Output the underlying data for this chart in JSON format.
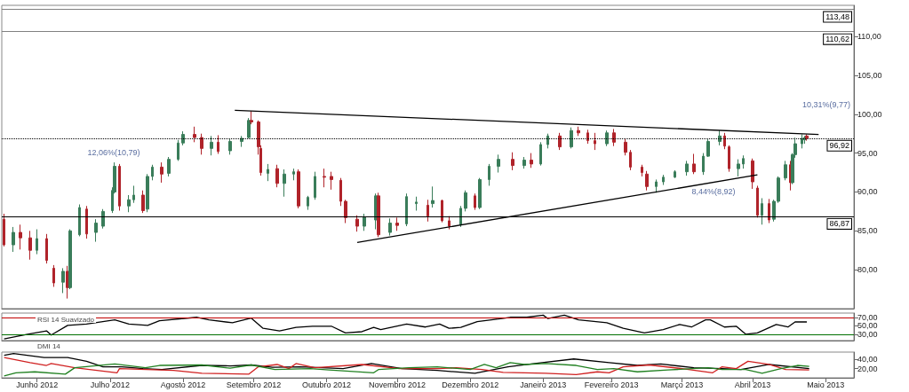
{
  "chart_data": [
    {
      "type": "candlestick",
      "xlim": [
        "2012-05-31",
        "2013-05-28"
      ],
      "ylim": [
        75,
        114
      ],
      "tick_labels": "y",
      "yticks": [
        {
          "value": 80,
          "label": "80,00"
        },
        {
          "value": 85,
          "label": "85,00"
        },
        {
          "value": 90,
          "label": "90,00"
        },
        {
          "value": 95,
          "label": "95,00"
        },
        {
          "value": 100,
          "label": "100,00"
        },
        {
          "value": 105,
          "label": "105,00"
        },
        {
          "value": 110,
          "label": "110,00"
        }
      ],
      "x": [
        "2012-06-01",
        "2012-06-05",
        "2012-06-08",
        "2012-06-12",
        "2012-06-15",
        "2012-06-19",
        "2012-06-22",
        "2012-06-26",
        "2012-06-28",
        "2012-06-29",
        "2012-07-03",
        "2012-07-06",
        "2012-07-10",
        "2012-07-13",
        "2012-07-17",
        "2012-07-18",
        "2012-07-20",
        "2012-07-24",
        "2012-07-26",
        "2012-07-30",
        "2012-08-01",
        "2012-08-03",
        "2012-08-07",
        "2012-08-10",
        "2012-08-14",
        "2012-08-16",
        "2012-08-21",
        "2012-08-24",
        "2012-08-28",
        "2012-08-31",
        "2012-09-05",
        "2012-09-10",
        "2012-09-13",
        "2012-09-14",
        "2012-09-17",
        "2012-09-18",
        "2012-09-21",
        "2012-09-25",
        "2012-09-28",
        "2012-10-02",
        "2012-10-04",
        "2012-10-08",
        "2012-10-11",
        "2012-10-15",
        "2012-10-18",
        "2012-10-22",
        "2012-10-24",
        "2012-10-29",
        "2012-11-01",
        "2012-11-06",
        "2012-11-07",
        "2012-11-12",
        "2012-11-15",
        "2012-11-19",
        "2012-11-23",
        "2012-11-28",
        "2012-11-30",
        "2012-12-04",
        "2012-12-07",
        "2012-12-12",
        "2012-12-14",
        "2012-12-18",
        "2012-12-20",
        "2012-12-24",
        "2012-12-28",
        "2013-01-03",
        "2013-01-08",
        "2013-01-11",
        "2013-01-15",
        "2013-01-18",
        "2013-01-23",
        "2013-01-28",
        "2013-01-31",
        "2013-02-04",
        "2013-02-07",
        "2013-02-12",
        "2013-02-15",
        "2013-02-20",
        "2013-02-22",
        "2013-02-27",
        "2013-03-01",
        "2013-03-05",
        "2013-03-08",
        "2013-03-13",
        "2013-03-18",
        "2013-03-21",
        "2013-03-25",
        "2013-03-27",
        "2013-04-01",
        "2013-04-03",
        "2013-04-05",
        "2013-04-09",
        "2013-04-11",
        "2013-04-15",
        "2013-04-17",
        "2013-04-19",
        "2013-04-22",
        "2013-04-24",
        "2013-04-26",
        "2013-04-29",
        "2013-05-01",
        "2013-05-02",
        "2013-05-03",
        "2013-05-06",
        "2013-05-07",
        "2013-05-08"
      ],
      "ohlc": [
        [
          86.5,
          87.2,
          83.0,
          83.2
        ],
        [
          83.2,
          85.5,
          82.3,
          84.8
        ],
        [
          84.8,
          85.8,
          82.6,
          84.1
        ],
        [
          84.1,
          85.0,
          81.3,
          82.5
        ],
        [
          82.5,
          85.2,
          82.0,
          84.0
        ],
        [
          84.0,
          84.6,
          80.8,
          81.2
        ],
        [
          80.2,
          80.6,
          77.8,
          78.3
        ],
        [
          78.4,
          80.2,
          77.0,
          79.8
        ],
        [
          79.8,
          80.5,
          76.3,
          77.7
        ],
        [
          77.7,
          85.2,
          77.5,
          85.0
        ],
        [
          84.5,
          88.4,
          84.3,
          88.0
        ],
        [
          87.8,
          88.2,
          84.0,
          84.6
        ],
        [
          84.8,
          86.5,
          83.6,
          86.0
        ],
        [
          85.6,
          87.8,
          85.3,
          87.5
        ],
        [
          87.6,
          90.6,
          87.3,
          90.2
        ],
        [
          90.0,
          93.8,
          89.8,
          93.3
        ],
        [
          93.3,
          93.6,
          87.6,
          88.2
        ],
        [
          88.2,
          89.6,
          87.4,
          89.0
        ],
        [
          89.0,
          90.8,
          88.6,
          89.6
        ],
        [
          89.6,
          90.2,
          87.3,
          87.6
        ],
        [
          87.8,
          92.3,
          87.4,
          92.0
        ],
        [
          92.0,
          93.5,
          91.5,
          93.2
        ],
        [
          93.2,
          93.8,
          91.2,
          92.3
        ],
        [
          92.4,
          94.5,
          92.0,
          94.2
        ],
        [
          94.2,
          96.7,
          94.0,
          96.3
        ],
        [
          96.3,
          97.8,
          96.0,
          97.4
        ],
        [
          97.4,
          98.4,
          96.4,
          97.0
        ],
        [
          97.0,
          97.5,
          94.8,
          95.6
        ],
        [
          95.6,
          97.2,
          94.7,
          96.4
        ],
        [
          96.4,
          97.3,
          94.9,
          95.2
        ],
        [
          95.3,
          96.8,
          94.8,
          96.5
        ],
        [
          96.5,
          97.2,
          95.8,
          96.9
        ],
        [
          97.0,
          99.5,
          96.9,
          99.2
        ],
        [
          99.2,
          100.4,
          98.7,
          99.0
        ],
        [
          99.0,
          99.2,
          94.8,
          95.8
        ],
        [
          95.6,
          96.0,
          92.1,
          92.5
        ],
        [
          92.4,
          93.6,
          91.4,
          92.9
        ],
        [
          93.0,
          93.5,
          90.6,
          91.1
        ],
        [
          91.1,
          92.9,
          89.4,
          92.3
        ],
        [
          92.3,
          93.0,
          91.5,
          92.6
        ],
        [
          92.6,
          92.9,
          87.9,
          88.2
        ],
        [
          88.2,
          89.5,
          87.7,
          89.3
        ],
        [
          89.3,
          92.6,
          89.0,
          92.0
        ],
        [
          92.0,
          93.0,
          90.6,
          91.9
        ],
        [
          92.0,
          92.6,
          90.3,
          91.6
        ],
        [
          91.5,
          91.8,
          88.2,
          88.8
        ],
        [
          88.8,
          89.0,
          86.0,
          86.7
        ],
        [
          86.5,
          87.0,
          84.9,
          85.6
        ],
        [
          85.6,
          87.2,
          85.0,
          86.8
        ],
        [
          86.4,
          89.8,
          85.2,
          89.5
        ],
        [
          89.5,
          89.9,
          84.2,
          84.5
        ],
        [
          84.8,
          86.6,
          84.4,
          86.0
        ],
        [
          86.0,
          86.7,
          85.0,
          85.7
        ],
        [
          85.9,
          89.8,
          85.6,
          89.4
        ],
        [
          88.5,
          89.4,
          87.6,
          88.7
        ],
        [
          88.3,
          89.0,
          86.2,
          86.9
        ],
        [
          88.5,
          90.7,
          88.0,
          88.9
        ],
        [
          88.9,
          89.0,
          86.1,
          86.3
        ],
        [
          86.3,
          86.9,
          85.2,
          85.6
        ],
        [
          85.8,
          88.2,
          85.5,
          87.9
        ],
        [
          87.9,
          90.2,
          87.5,
          89.9
        ],
        [
          89.5,
          89.8,
          87.7,
          88.0
        ],
        [
          88.0,
          91.8,
          87.8,
          91.6
        ],
        [
          91.6,
          93.6,
          90.8,
          93.3
        ],
        [
          93.3,
          94.8,
          92.5,
          94.2
        ],
        [
          94.2,
          95.1,
          92.8,
          93.4
        ],
        [
          93.4,
          94.5,
          93.0,
          94.1
        ],
        [
          94.1,
          95.0,
          93.1,
          93.6
        ],
        [
          93.6,
          96.4,
          93.4,
          96.1
        ],
        [
          96.1,
          97.5,
          95.6,
          97.2
        ],
        [
          97.2,
          97.6,
          95.4,
          95.8
        ],
        [
          95.8,
          98.3,
          95.6,
          97.9
        ],
        [
          97.9,
          98.4,
          97.2,
          97.6
        ],
        [
          97.6,
          98.0,
          96.2,
          96.6
        ],
        [
          96.6,
          97.6,
          95.4,
          96.2
        ],
        [
          96.2,
          97.9,
          95.9,
          97.6
        ],
        [
          97.6,
          98.1,
          95.9,
          96.4
        ],
        [
          96.4,
          96.8,
          94.7,
          95.1
        ],
        [
          95.1,
          95.4,
          92.8,
          93.2
        ],
        [
          93.2,
          93.5,
          92.0,
          92.5
        ],
        [
          92.3,
          92.7,
          90.2,
          90.7
        ],
        [
          90.7,
          91.6,
          89.9,
          91.3
        ],
        [
          91.3,
          92.2,
          90.9,
          91.9
        ],
        [
          91.9,
          92.8,
          91.8,
          92.6
        ],
        [
          92.6,
          94.0,
          92.1,
          93.6
        ],
        [
          93.6,
          94.9,
          92.3,
          92.6
        ],
        [
          92.6,
          95.0,
          92.2,
          94.6
        ],
        [
          94.6,
          96.8,
          94.5,
          96.5
        ],
        [
          96.5,
          97.9,
          96.0,
          97.2
        ],
        [
          97.2,
          97.6,
          95.5,
          95.9
        ],
        [
          95.8,
          96.0,
          92.6,
          93.0
        ],
        [
          93.0,
          94.2,
          92.0,
          93.6
        ],
        [
          93.6,
          94.7,
          93.0,
          94.3
        ],
        [
          94.0,
          94.3,
          90.4,
          91.3
        ],
        [
          90.5,
          90.8,
          86.7,
          87.0
        ],
        [
          87.0,
          89.2,
          85.8,
          88.5
        ],
        [
          88.5,
          89.1,
          86.0,
          86.4
        ],
        [
          86.5,
          89.0,
          86.2,
          88.8
        ],
        [
          88.8,
          92.0,
          88.6,
          91.8
        ],
        [
          91.8,
          94.0,
          91.5,
          93.5
        ],
        [
          93.5,
          94.0,
          90.2,
          91.2
        ],
        [
          91.2,
          95.0,
          91.0,
          94.8
        ],
        [
          94.8,
          97.0,
          94.4,
          96.2
        ],
        [
          96.2,
          97.4,
          95.6,
          96.9
        ],
        [
          96.7,
          97.2,
          96.2,
          97.0
        ],
        [
          97.2,
          97.4,
          96.6,
          96.92
        ]
      ],
      "colors": [
        "#b0232a",
        "#3a7d5a",
        "#b0232a",
        "#b0232a",
        "#3a7d5a",
        "#b0232a",
        "#b0232a",
        "#3a7d5a",
        "#b0232a",
        "#3a7d5a",
        "#3a7d5a",
        "#b0232a",
        "#3a7d5a",
        "#3a7d5a",
        "#3a7d5a",
        "#3a7d5a",
        "#b0232a",
        "#3a7d5a",
        "#3a7d5a",
        "#b0232a",
        "#3a7d5a",
        "#3a7d5a",
        "#b0232a",
        "#3a7d5a",
        "#3a7d5a",
        "#3a7d5a",
        "#b0232a",
        "#b0232a",
        "#3a7d5a",
        "#b0232a",
        "#3a7d5a",
        "#3a7d5a",
        "#3a7d5a",
        "#b0232a",
        "#b0232a",
        "#b0232a",
        "#3a7d5a",
        "#b0232a",
        "#3a7d5a",
        "#3a7d5a",
        "#b0232a",
        "#3a7d5a",
        "#3a7d5a",
        "#b0232a",
        "#b0232a",
        "#b0232a",
        "#b0232a",
        "#b0232a",
        "#3a7d5a",
        "#3a7d5a",
        "#b0232a",
        "#3a7d5a",
        "#b0232a",
        "#3a7d5a",
        "#3a7d5a",
        "#b0232a",
        "#3a7d5a",
        "#b0232a",
        "#b0232a",
        "#3a7d5a",
        "#3a7d5a",
        "#b0232a",
        "#3a7d5a",
        "#3a7d5a",
        "#3a7d5a",
        "#b0232a",
        "#3a7d5a",
        "#b0232a",
        "#3a7d5a",
        "#3a7d5a",
        "#b0232a",
        "#3a7d5a",
        "#b0232a",
        "#b0232a",
        "#b0232a",
        "#3a7d5a",
        "#b0232a",
        "#b0232a",
        "#b0232a",
        "#b0232a",
        "#b0232a",
        "#3a7d5a",
        "#3a7d5a",
        "#3a7d5a",
        "#3a7d5a",
        "#b0232a",
        "#3a7d5a",
        "#3a7d5a",
        "#3a7d5a",
        "#b0232a",
        "#b0232a",
        "#3a7d5a",
        "#3a7d5a",
        "#b0232a",
        "#b0232a",
        "#3a7d5a",
        "#b0232a",
        "#3a7d5a",
        "#3a7d5a",
        "#3a7d5a",
        "#b0232a",
        "#3a7d5a",
        "#3a7d5a",
        "#3a7d5a",
        "#3a7d5a",
        "#b0232a"
      ],
      "series": [
        {
          "type": "line",
          "color": "#000000",
          "x": [
            "2012-09-07",
            "2013-05-13"
          ],
          "values": [
            100.5,
            97.4
          ]
        },
        {
          "type": "line",
          "color": "#000000",
          "x": [
            "2012-10-29",
            "2013-04-17"
          ],
          "values": [
            83.5,
            92.2
          ]
        }
      ],
      "marker": "none",
      "ref_lines": [
        {
          "axis": "y",
          "value": 113.48,
          "label": "113,48",
          "color": "#808080",
          "line_style": "solid"
        },
        {
          "axis": "y",
          "value": 110.62,
          "label": "110,62",
          "color": "#808080",
          "line_style": "solid"
        },
        {
          "axis": "y",
          "value": 96.92,
          "label": "96,92",
          "color": "#000000",
          "line_style": "dotted"
        },
        {
          "axis": "y",
          "value": 86.87,
          "label": "86,87",
          "color": "#000000",
          "line_style": "solid"
        }
      ],
      "annotations": [
        "12,06%(10,79)",
        "8,44%(8,92)",
        "10,31%(9,77)"
      ]
    },
    {
      "type": "line",
      "title": "RSI 14 Suavizado",
      "xlim": [
        "2012-05-31",
        "2013-05-28"
      ],
      "ylim": [
        15,
        80
      ],
      "tick_labels": "y",
      "marker": "none",
      "yticks": [
        {
          "value": 30,
          "label": "30,00"
        },
        {
          "value": 50,
          "label": "50,00"
        },
        {
          "value": 70,
          "label": "70,00"
        }
      ],
      "ref_lines": [
        {
          "axis": "y",
          "value": 70,
          "color": "#c00000"
        },
        {
          "axis": "y",
          "value": 30,
          "color": "#007000"
        }
      ],
      "series": [
        {
          "color": "#000000",
          "x": [
            "2012-06-01",
            "2012-06-11",
            "2012-06-19",
            "2012-06-21",
            "2012-06-28",
            "2012-07-06",
            "2012-07-18",
            "2012-07-24",
            "2012-08-01",
            "2012-08-06",
            "2012-08-22",
            "2012-08-27",
            "2012-09-06",
            "2012-09-14",
            "2012-09-19",
            "2012-09-26",
            "2012-10-03",
            "2012-10-10",
            "2012-10-18",
            "2012-10-24",
            "2012-10-31",
            "2012-11-05",
            "2012-11-08",
            "2012-11-19",
            "2012-11-27",
            "2012-12-03",
            "2012-12-07",
            "2012-12-12",
            "2012-12-19",
            "2012-12-28",
            "2013-01-02",
            "2013-01-09",
            "2013-01-16",
            "2013-01-18",
            "2013-01-25",
            "2013-01-31",
            "2013-02-12",
            "2013-02-19",
            "2013-02-28",
            "2013-03-08",
            "2013-03-15",
            "2013-03-20",
            "2013-03-26",
            "2013-03-28",
            "2013-04-03",
            "2013-04-08",
            "2013-04-12",
            "2013-04-17",
            "2013-04-25",
            "2013-04-30",
            "2013-05-03",
            "2013-05-08"
          ],
          "values": [
            19,
            30,
            38,
            28,
            51,
            54,
            64,
            54,
            51,
            62,
            70,
            64,
            57,
            68,
            44,
            38,
            46,
            49,
            49,
            33,
            36,
            46,
            41,
            54,
            47,
            54,
            44,
            46,
            60,
            66,
            70,
            70,
            75,
            67,
            75,
            64,
            57,
            44,
            33,
            41,
            53,
            47,
            64,
            64,
            47,
            49,
            30,
            33,
            53,
            47,
            59,
            59
          ]
        }
      ]
    },
    {
      "type": "line",
      "title": "DMI 14",
      "xlim": [
        "2012-05-31",
        "2013-05-28"
      ],
      "ylim": [
        0,
        56
      ],
      "marker": "none",
      "yticks": [
        {
          "value": 20,
          "label": "20,00"
        },
        {
          "value": 40,
          "label": "40,00"
        }
      ],
      "xticks": [
        {
          "value": "2012-06-15",
          "label": "Junho 2012"
        },
        {
          "value": "2012-07-16",
          "label": "Julho 2012"
        },
        {
          "value": "2012-08-16",
          "label": "Agosto 2012"
        },
        {
          "value": "2012-09-15",
          "label": "Setembro 2012"
        },
        {
          "value": "2012-10-16",
          "label": "Outubro 2012"
        },
        {
          "value": "2012-11-15",
          "label": "Novembro 2012"
        },
        {
          "value": "2012-12-16",
          "label": "Dezembro 2012"
        },
        {
          "value": "2013-01-16",
          "label": "Janeiro 2013"
        },
        {
          "value": "2013-02-14",
          "label": "Fevereiro 2013"
        },
        {
          "value": "2013-03-16",
          "label": "Março 2013"
        },
        {
          "value": "2013-04-15",
          "label": "Abril 2013"
        },
        {
          "value": "2013-05-16",
          "label": "Maio 2013"
        }
      ],
      "series": [
        {
          "color": "#000000",
          "x": [
            "2012-06-01",
            "2012-06-05",
            "2012-06-18",
            "2012-06-28",
            "2012-07-06",
            "2012-07-13",
            "2012-07-21",
            "2012-07-30",
            "2012-08-07",
            "2012-08-24",
            "2012-09-05",
            "2012-09-14",
            "2012-09-23",
            "2012-10-05",
            "2012-10-23",
            "2012-11-04",
            "2012-11-17",
            "2012-12-02",
            "2012-12-18",
            "2013-01-01",
            "2013-01-14",
            "2013-01-29",
            "2013-02-13",
            "2013-02-25",
            "2013-03-07",
            "2013-03-21",
            "2013-04-02",
            "2013-04-10",
            "2013-04-22",
            "2013-05-09"
          ],
          "values": [
            49,
            53,
            44,
            44,
            36,
            24,
            24,
            20,
            18,
            27,
            26,
            28,
            23,
            24,
            20,
            31,
            20,
            16,
            10,
            24,
            32,
            41,
            33,
            27,
            30,
            22,
            20,
            18,
            29,
            20
          ]
        },
        {
          "color": "#d02020",
          "x": [
            "2012-06-01",
            "2012-06-12",
            "2012-06-19",
            "2012-06-21",
            "2012-07-01",
            "2012-07-19",
            "2012-07-20",
            "2012-08-12",
            "2012-08-24",
            "2012-09-13",
            "2012-09-17",
            "2012-09-25",
            "2012-09-30",
            "2012-10-03",
            "2012-10-11",
            "2012-10-31",
            "2012-11-16",
            "2012-12-02",
            "2012-12-10",
            "2012-12-21",
            "2012-12-30",
            "2013-01-17",
            "2013-01-30",
            "2013-02-08",
            "2013-02-13",
            "2013-02-19",
            "2013-03-02",
            "2013-03-16",
            "2013-03-29",
            "2013-04-02",
            "2013-04-08",
            "2013-04-13",
            "2013-04-22",
            "2013-04-29",
            "2013-05-09"
          ],
          "values": [
            44,
            33,
            27,
            31,
            22,
            11,
            20,
            16,
            10,
            8,
            24,
            29,
            20,
            31,
            22,
            29,
            20,
            20,
            22,
            18,
            12,
            10,
            7,
            13,
            11,
            24,
            28,
            20,
            11,
            24,
            20,
            36,
            29,
            18,
            17
          ]
        },
        {
          "color": "#208020",
          "x": [
            "2012-06-01",
            "2012-06-06",
            "2012-06-14",
            "2012-06-27",
            "2012-07-01",
            "2012-07-18",
            "2012-07-31",
            "2012-08-06",
            "2012-08-24",
            "2012-09-05",
            "2012-09-14",
            "2012-09-24",
            "2012-10-09",
            "2012-10-17",
            "2012-11-05",
            "2012-11-07",
            "2012-11-20",
            "2012-12-02",
            "2012-12-16",
            "2012-12-22",
            "2012-12-27",
            "2013-01-02",
            "2013-01-08",
            "2013-01-17",
            "2013-01-30",
            "2013-02-08",
            "2013-02-15",
            "2013-02-25",
            "2013-03-10",
            "2013-03-27",
            "2013-04-02",
            "2013-04-12",
            "2013-04-19",
            "2013-04-27",
            "2013-05-04",
            "2013-05-09"
          ],
          "values": [
            4,
            11,
            13,
            8,
            22,
            30,
            22,
            27,
            28,
            21,
            28,
            18,
            20,
            17,
            11,
            18,
            22,
            24,
            18,
            29,
            22,
            33,
            29,
            31,
            27,
            18,
            20,
            13,
            17,
            22,
            18,
            18,
            10,
            20,
            27,
            25
          ]
        }
      ]
    }
  ]
}
